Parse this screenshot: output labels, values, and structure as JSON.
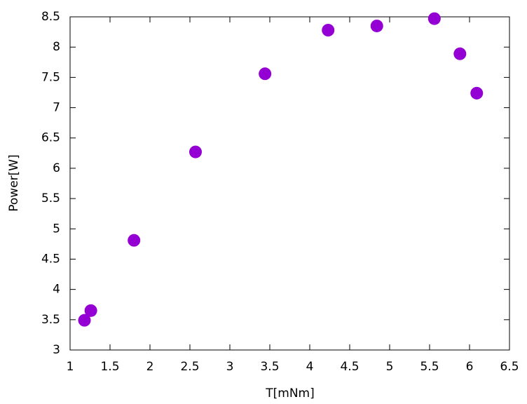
{
  "chart_data": {
    "type": "scatter",
    "x_label": "T[mNm]",
    "y_label": "Power[W]",
    "x": [
      1.18,
      1.26,
      1.8,
      2.57,
      3.44,
      4.23,
      4.84,
      5.56,
      5.88,
      6.09
    ],
    "values": [
      3.49,
      3.65,
      4.81,
      6.27,
      7.56,
      8.28,
      8.35,
      8.47,
      7.89,
      7.24
    ],
    "color": "#9400d3",
    "xlim": [
      1,
      6.5
    ],
    "xticks": [
      1,
      1.5,
      2,
      2.5,
      3,
      3.5,
      4,
      4.5,
      5,
      5.5,
      6,
      6.5
    ],
    "ylim": [
      3,
      8.5
    ],
    "yticks": [
      3,
      3.5,
      4,
      4.5,
      5,
      5.5,
      6,
      6.5,
      7,
      7.5,
      8,
      8.5
    ],
    "grid": false
  }
}
